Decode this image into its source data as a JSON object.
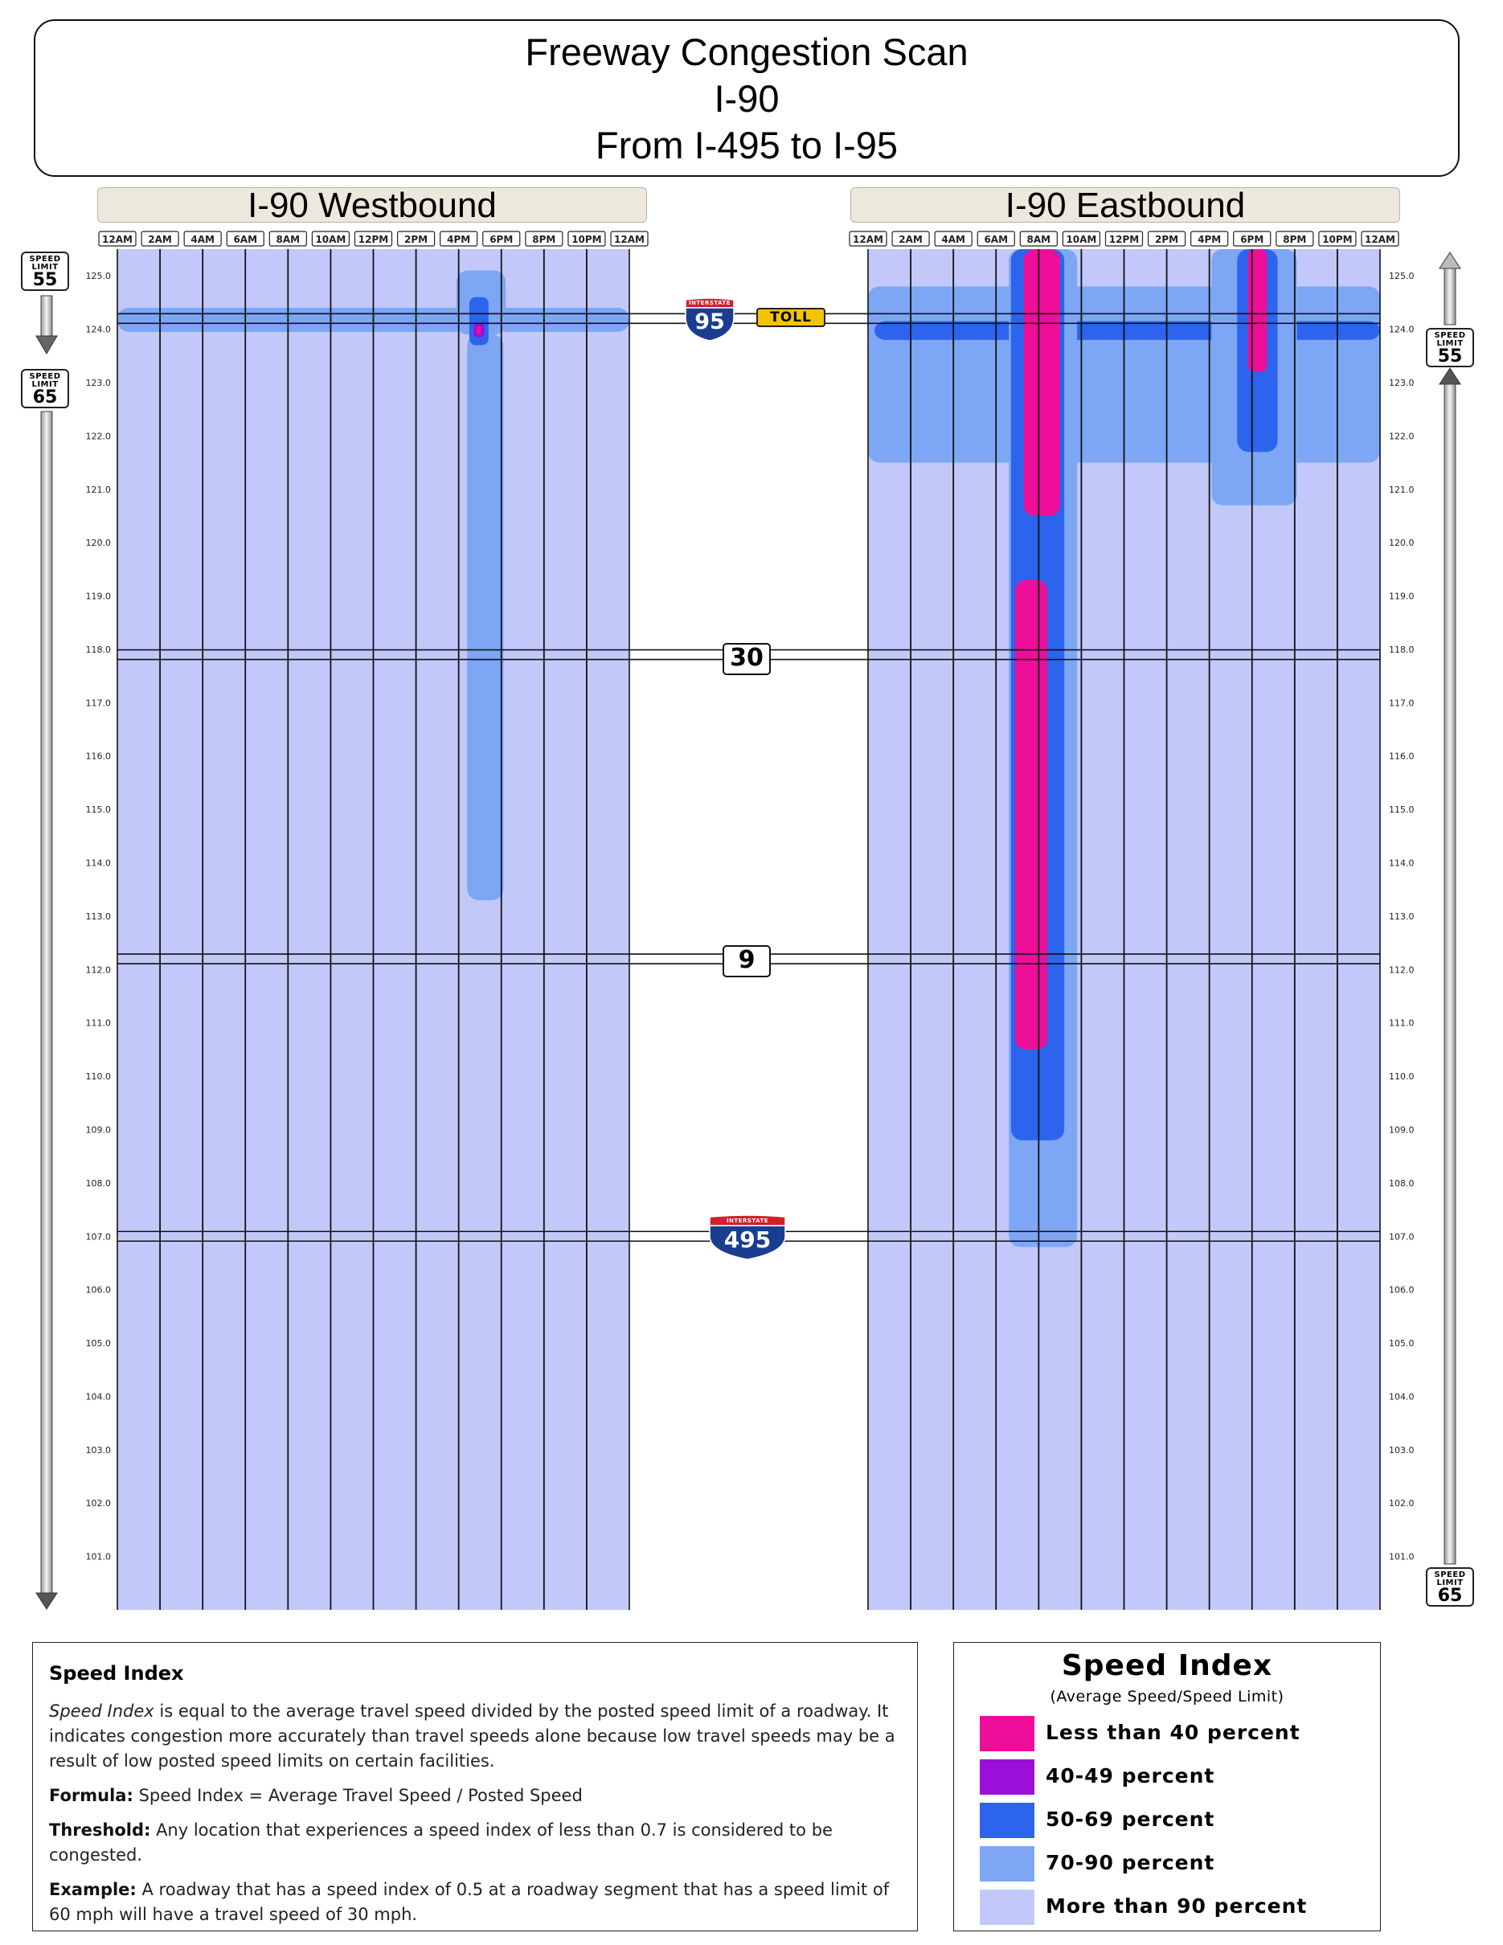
{
  "title": {
    "line1": "Freeway Congestion Scan",
    "line2": "I-90",
    "line3": "From I-495 to I-95"
  },
  "panels": {
    "westbound": "I-90 Westbound",
    "eastbound": "I-90 Eastbound"
  },
  "time_labels": [
    "12AM",
    "2AM",
    "4AM",
    "6AM",
    "8AM",
    "10AM",
    "12PM",
    "2PM",
    "4PM",
    "6PM",
    "8PM",
    "10PM",
    "12AM"
  ],
  "speed_signs": {
    "left_top": {
      "line1": "SPEED",
      "line2": "LIMIT",
      "value": "55"
    },
    "left_mid": {
      "line1": "SPEED",
      "line2": "LIMIT",
      "value": "65"
    },
    "right_mid": {
      "line1": "SPEED",
      "line2": "LIMIT",
      "value": "55"
    },
    "right_bottom": {
      "line1": "SPEED",
      "line2": "LIMIT",
      "value": "65"
    }
  },
  "landmarks": {
    "i95": {
      "top": "INTERSTATE",
      "number": "95"
    },
    "toll": "TOLL",
    "route30": "30",
    "route9": "9",
    "i495": {
      "top": "INTERSTATE",
      "number": "495"
    }
  },
  "colors": {
    "lt40": "#ee0e9a",
    "p40_49": "#9a10d8",
    "p50_69": "#2c64ee",
    "p70_90": "#7da6f4",
    "gt90": "#c2c9fa"
  },
  "chart_data": {
    "type": "heatmap",
    "x_axis": "time of day (hours)",
    "xlim": [
      0,
      24
    ],
    "y_axis": "milepost",
    "ylim": [
      100.0,
      125.5
    ],
    "y_ticks": [
      "101.0",
      "102.0",
      "103.0",
      "104.0",
      "105.0",
      "106.0",
      "107.0",
      "108.0",
      "109.0",
      "110.0",
      "111.0",
      "112.0",
      "113.0",
      "114.0",
      "115.0",
      "116.0",
      "117.0",
      "118.0",
      "119.0",
      "120.0",
      "121.0",
      "122.0",
      "123.0",
      "124.0",
      "125.0"
    ],
    "landmark_mileposts": {
      "I-95": 124.2,
      "Route 30": 117.9,
      "Route 9": 112.2,
      "I-495": 107.0
    },
    "westbound": {
      "background": "gt90",
      "regions": [
        {
          "category": "p70_90",
          "t": [
            0,
            24
          ],
          "m": [
            123.95,
            124.4
          ]
        },
        {
          "category": "p70_90",
          "t": [
            16.4,
            18.1
          ],
          "m": [
            113.3,
            123.9
          ]
        },
        {
          "category": "p70_90",
          "t": [
            15.9,
            18.2
          ],
          "m": [
            123.9,
            125.1
          ]
        },
        {
          "category": "p50_69",
          "t": [
            16.5,
            17.4
          ],
          "m": [
            123.7,
            124.6
          ]
        },
        {
          "category": "p40_49",
          "t": [
            16.7,
            17.2
          ],
          "m": [
            123.85,
            124.1
          ]
        },
        {
          "category": "lt40",
          "t": [
            16.85,
            17.05
          ],
          "m": [
            123.9,
            124.05
          ]
        }
      ]
    },
    "eastbound": {
      "background": "gt90",
      "regions": [
        {
          "category": "p70_90",
          "t": [
            0,
            24
          ],
          "m": [
            121.5,
            124.8
          ]
        },
        {
          "category": "p50_69",
          "t": [
            0.3,
            24
          ],
          "m": [
            123.8,
            124.15
          ]
        },
        {
          "category": "p70_90",
          "t": [
            6.6,
            9.8
          ],
          "m": [
            106.8,
            125.5
          ]
        },
        {
          "category": "p50_69",
          "t": [
            6.7,
            9.2
          ],
          "m": [
            108.8,
            125.5
          ]
        },
        {
          "category": "lt40",
          "t": [
            6.9,
            8.4
          ],
          "m": [
            110.5,
            119.3
          ]
        },
        {
          "category": "lt40",
          "t": [
            7.3,
            9.0
          ],
          "m": [
            120.5,
            125.5
          ]
        },
        {
          "category": "p70_90",
          "t": [
            16.1,
            20.1
          ],
          "m": [
            120.7,
            125.5
          ]
        },
        {
          "category": "p50_69",
          "t": [
            17.3,
            19.2
          ],
          "m": [
            121.7,
            125.5
          ]
        },
        {
          "category": "lt40",
          "t": [
            17.8,
            18.7
          ],
          "m": [
            123.2,
            125.5
          ]
        }
      ]
    }
  },
  "info": {
    "title": "Speed Index",
    "p1_em": "Speed Index",
    "p1_rest": " is equal to the average travel speed divided by the posted speed limit of a roadway. It indicates congestion more accurately than travel speeds alone because low travel speeds may be a result of low posted speed limits on certain facilities.",
    "formula_label": "Formula:",
    "formula_text": " Speed Index = Average Travel Speed / Posted Speed",
    "threshold_label": "Threshold:",
    "threshold_text": " Any location that experiences a speed index of less than 0.7 is considered to be congested.",
    "example_label": "Example:",
    "example_text": " A roadway that has a speed index of 0.5 at a roadway segment that has a speed limit of 60 mph will have a travel speed of 30 mph."
  },
  "legend": {
    "title": "Speed Index",
    "subtitle": "(Average Speed/Speed Limit)",
    "items": [
      {
        "label": "Less than 40 percent",
        "color": "#ee0e9a"
      },
      {
        "label": "40-49 percent",
        "color": "#9a10d8"
      },
      {
        "label": "50-69 percent",
        "color": "#2c64ee"
      },
      {
        "label": "70-90 percent",
        "color": "#7da6f4"
      },
      {
        "label": "More than 90 percent",
        "color": "#c2c9fa"
      }
    ]
  }
}
